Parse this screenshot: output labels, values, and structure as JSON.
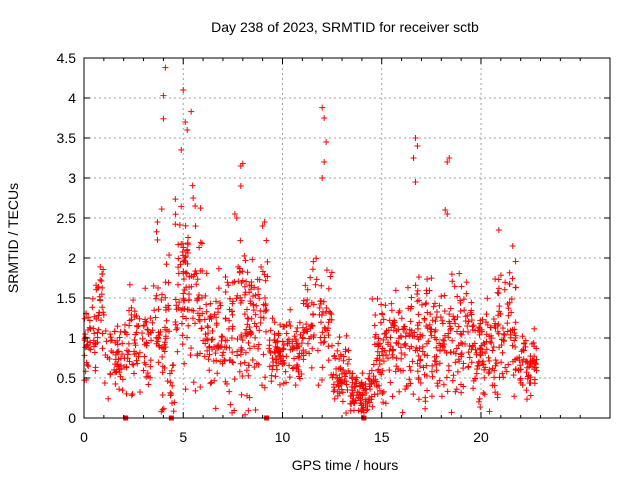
{
  "chart_data": {
    "type": "scatter",
    "title": "Day 238 of 2023, SRMTID for receiver sctb",
    "xlabel": "GPS time / hours",
    "ylabel": "SRMTID / TECUs",
    "xlim": [
      0,
      26.5
    ],
    "ylim": [
      0,
      4.5
    ],
    "xticks": [
      0,
      5,
      10,
      15,
      20
    ],
    "xtick_labels": [
      "0",
      "5",
      "10",
      "15",
      "20"
    ],
    "yticks": [
      0,
      0.5,
      1,
      1.5,
      2,
      2.5,
      3,
      3.5,
      4,
      4.5
    ],
    "ytick_labels": [
      "0",
      "0.5",
      "1",
      "1.5",
      "2",
      "2.5",
      "3",
      "3.5",
      "4",
      "4.5"
    ],
    "grid": true,
    "marker": "plus",
    "color": "#ff0000",
    "x_range_of_data": [
      0,
      22.8
    ],
    "highlights": [
      {
        "x": 4.1,
        "y": 4.38
      },
      {
        "x": 4.0,
        "y": 4.03
      },
      {
        "x": 4.0,
        "y": 3.74
      },
      {
        "x": 5.0,
        "y": 4.1
      },
      {
        "x": 5.4,
        "y": 3.83
      },
      {
        "x": 5.1,
        "y": 3.7
      },
      {
        "x": 5.2,
        "y": 3.6
      },
      {
        "x": 4.9,
        "y": 3.35
      },
      {
        "x": 12.0,
        "y": 3.88
      },
      {
        "x": 12.1,
        "y": 3.75
      },
      {
        "x": 12.2,
        "y": 3.45
      },
      {
        "x": 12.1,
        "y": 3.2
      },
      {
        "x": 16.7,
        "y": 3.5
      },
      {
        "x": 16.8,
        "y": 3.4
      },
      {
        "x": 16.6,
        "y": 3.25
      },
      {
        "x": 18.4,
        "y": 3.25
      },
      {
        "x": 18.3,
        "y": 3.2
      },
      {
        "x": 7.9,
        "y": 3.15
      },
      {
        "x": 8.0,
        "y": 3.18
      },
      {
        "x": 7.9,
        "y": 2.9
      },
      {
        "x": 16.7,
        "y": 2.95
      },
      {
        "x": 12.0,
        "y": 3.0
      },
      {
        "x": 5.6,
        "y": 2.65
      },
      {
        "x": 5.5,
        "y": 2.75
      },
      {
        "x": 9.0,
        "y": 2.4
      },
      {
        "x": 9.1,
        "y": 2.45
      },
      {
        "x": 7.6,
        "y": 2.55
      },
      {
        "x": 7.7,
        "y": 2.5
      },
      {
        "x": 3.7,
        "y": 2.45
      },
      {
        "x": 20.9,
        "y": 2.35
      },
      {
        "x": 21.6,
        "y": 2.15
      },
      {
        "x": 18.2,
        "y": 2.6
      },
      {
        "x": 18.3,
        "y": 2.55
      }
    ],
    "zero_markers": [
      2.1,
      4.4,
      9.2,
      14.1
    ],
    "segments": [
      {
        "x0": 0.0,
        "x1": 0.6,
        "base": 0.95,
        "spread": 0.35,
        "n": 40
      },
      {
        "x0": 0.6,
        "x1": 1.0,
        "base": 1.35,
        "spread": 0.5,
        "n": 30
      },
      {
        "x0": 1.0,
        "x1": 2.2,
        "base": 0.75,
        "spread": 0.35,
        "n": 60
      },
      {
        "x0": 2.2,
        "x1": 3.5,
        "base": 0.95,
        "spread": 0.45,
        "n": 70
      },
      {
        "x0": 3.5,
        "x1": 4.3,
        "base": 1.1,
        "spread": 0.8,
        "n": 55
      },
      {
        "x0": 4.3,
        "x1": 4.6,
        "base": 0.35,
        "spread": 0.3,
        "n": 12
      },
      {
        "x0": 4.6,
        "x1": 6.0,
        "base": 1.55,
        "spread": 0.8,
        "n": 110
      },
      {
        "x0": 6.0,
        "x1": 7.4,
        "base": 1.0,
        "spread": 0.6,
        "n": 85
      },
      {
        "x0": 7.4,
        "x1": 8.3,
        "base": 1.1,
        "spread": 0.9,
        "n": 70
      },
      {
        "x0": 8.3,
        "x1": 9.3,
        "base": 1.2,
        "spread": 0.7,
        "n": 65
      },
      {
        "x0": 9.3,
        "x1": 11.0,
        "base": 0.8,
        "spread": 0.3,
        "n": 110
      },
      {
        "x0": 11.0,
        "x1": 12.5,
        "base": 1.15,
        "spread": 0.55,
        "n": 85
      },
      {
        "x0": 12.5,
        "x1": 13.4,
        "base": 0.55,
        "spread": 0.3,
        "n": 60
      },
      {
        "x0": 13.4,
        "x1": 14.5,
        "base": 0.3,
        "spread": 0.2,
        "n": 80
      },
      {
        "x0": 14.5,
        "x1": 15.5,
        "base": 0.75,
        "spread": 0.5,
        "n": 70
      },
      {
        "x0": 15.5,
        "x1": 17.0,
        "base": 0.95,
        "spread": 0.6,
        "n": 100
      },
      {
        "x0": 17.0,
        "x1": 18.6,
        "base": 0.95,
        "spread": 0.6,
        "n": 100
      },
      {
        "x0": 18.6,
        "x1": 19.6,
        "base": 1.0,
        "spread": 0.55,
        "n": 65
      },
      {
        "x0": 19.6,
        "x1": 20.6,
        "base": 0.85,
        "spread": 0.45,
        "n": 70
      },
      {
        "x0": 20.6,
        "x1": 21.8,
        "base": 1.15,
        "spread": 0.6,
        "n": 80
      },
      {
        "x0": 21.8,
        "x1": 22.8,
        "base": 0.65,
        "spread": 0.3,
        "n": 60
      }
    ],
    "seed": 238
  }
}
